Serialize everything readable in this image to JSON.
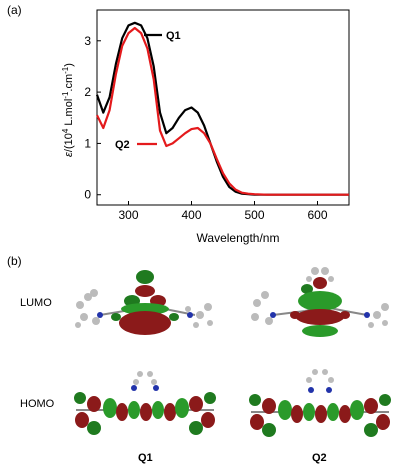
{
  "panel_a": {
    "label": "(a)"
  },
  "panel_b": {
    "label": "(b)",
    "row_labels": [
      "LUMO",
      "HOMO"
    ],
    "column_labels": [
      "Q1",
      "Q2"
    ]
  },
  "chart_data": {
    "type": "line",
    "xlabel": "Wavelength/nm",
    "ylabel_parts": [
      "ε/(10",
      "4",
      " L.mol",
      "-1",
      ".cm",
      "-1",
      ")"
    ],
    "xlim": [
      250,
      650
    ],
    "ylim": [
      -0.2,
      3.6
    ],
    "x_ticks": [
      300,
      400,
      500,
      600
    ],
    "y_ticks": [
      0,
      1,
      2,
      3
    ],
    "grid": false,
    "series": [
      {
        "name": "Q1",
        "color": "#000000",
        "x": [
          250,
          260,
          270,
          280,
          290,
          300,
          310,
          320,
          330,
          340,
          350,
          360,
          370,
          380,
          390,
          400,
          410,
          420,
          430,
          440,
          450,
          460,
          470,
          480,
          490,
          500,
          520,
          550,
          600,
          650
        ],
        "y": [
          1.95,
          1.6,
          1.9,
          2.55,
          3.05,
          3.3,
          3.35,
          3.3,
          3.05,
          2.5,
          1.6,
          1.2,
          1.3,
          1.5,
          1.65,
          1.7,
          1.6,
          1.35,
          1.0,
          0.65,
          0.35,
          0.15,
          0.06,
          0.02,
          0.01,
          0.0,
          0.0,
          0.0,
          0.0,
          0.0
        ]
      },
      {
        "name": "Q2",
        "color": "#e41a1c",
        "x": [
          250,
          260,
          270,
          280,
          290,
          300,
          310,
          320,
          330,
          340,
          350,
          360,
          370,
          380,
          390,
          400,
          410,
          420,
          430,
          440,
          450,
          460,
          470,
          480,
          490,
          500,
          520,
          550,
          600,
          650
        ],
        "y": [
          1.55,
          1.3,
          1.65,
          2.35,
          2.9,
          3.15,
          3.25,
          3.15,
          2.85,
          2.25,
          1.25,
          0.95,
          1.0,
          1.1,
          1.2,
          1.28,
          1.3,
          1.2,
          1.0,
          0.7,
          0.42,
          0.22,
          0.1,
          0.04,
          0.02,
          0.01,
          0.0,
          0.0,
          0.0,
          0.0
        ]
      }
    ]
  }
}
